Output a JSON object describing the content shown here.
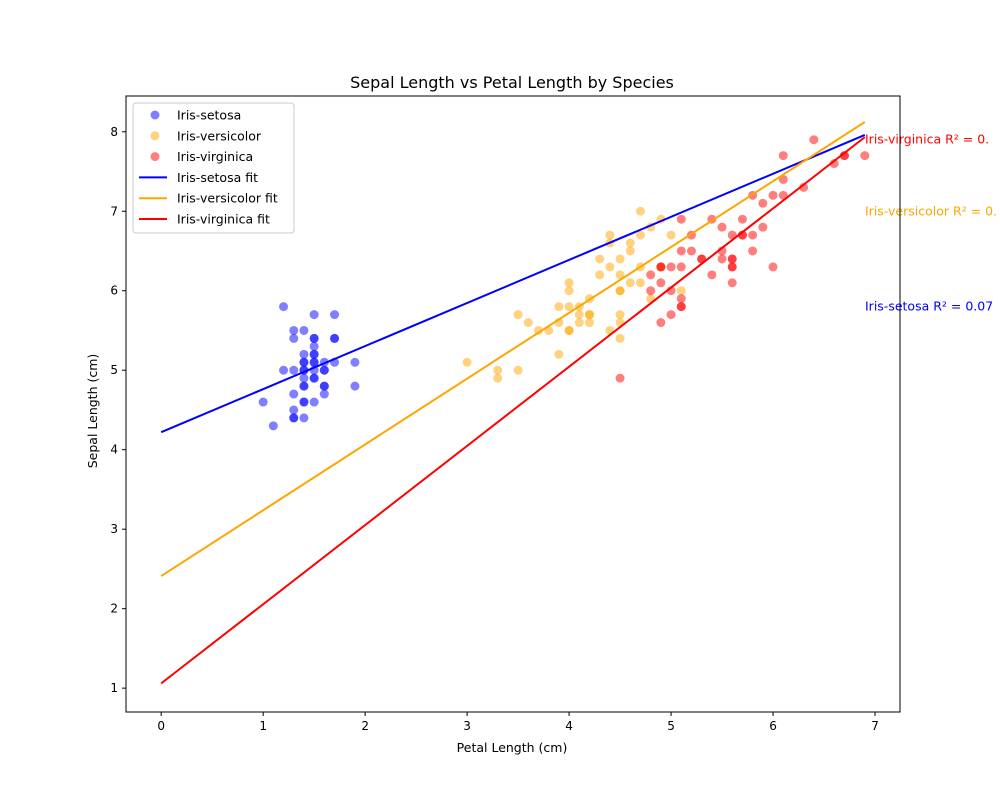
{
  "chart_data": {
    "type": "scatter",
    "title": "Sepal Length vs Petal Length by Species",
    "xlabel": "Petal Length (cm)",
    "ylabel": "Sepal Length (cm)",
    "xlim": [
      -0.345,
      7.245
    ],
    "ylim": [
      0.7,
      8.45
    ],
    "xticks": [
      0,
      1,
      2,
      3,
      4,
      5,
      6,
      7
    ],
    "yticks": [
      1,
      2,
      3,
      4,
      5,
      6,
      7,
      8
    ],
    "grid": false,
    "legend_position": "top-left",
    "legend": [
      "Iris-setosa",
      "Iris-versicolor",
      "Iris-virginica",
      "Iris-setosa fit",
      "Iris-versicolor fit",
      "Iris-virginica fit"
    ],
    "series": [
      {
        "name": "Iris-setosa",
        "color": "#0000ff",
        "fit_label": "Iris-setosa fit",
        "fit": {
          "slope": 0.542,
          "intercept": 4.22
        },
        "annotation": "Iris-setosa R² = 0.07",
        "points": [
          [
            1.0,
            4.6
          ],
          [
            1.1,
            4.3
          ],
          [
            1.2,
            5.8
          ],
          [
            1.2,
            5.0
          ],
          [
            1.3,
            5.5
          ],
          [
            1.3,
            5.4
          ],
          [
            1.3,
            5.0
          ],
          [
            1.3,
            4.7
          ],
          [
            1.3,
            4.5
          ],
          [
            1.3,
            4.4
          ],
          [
            1.3,
            4.4
          ],
          [
            1.4,
            5.5
          ],
          [
            1.4,
            5.2
          ],
          [
            1.4,
            5.1
          ],
          [
            1.4,
            5.1
          ],
          [
            1.4,
            5.0
          ],
          [
            1.4,
            5.0
          ],
          [
            1.4,
            4.9
          ],
          [
            1.4,
            4.8
          ],
          [
            1.4,
            4.8
          ],
          [
            1.4,
            4.6
          ],
          [
            1.4,
            4.6
          ],
          [
            1.4,
            4.4
          ],
          [
            1.5,
            5.7
          ],
          [
            1.5,
            5.4
          ],
          [
            1.5,
            5.4
          ],
          [
            1.5,
            5.3
          ],
          [
            1.5,
            5.2
          ],
          [
            1.5,
            5.2
          ],
          [
            1.5,
            5.1
          ],
          [
            1.5,
            5.1
          ],
          [
            1.5,
            5.0
          ],
          [
            1.5,
            4.9
          ],
          [
            1.5,
            4.9
          ],
          [
            1.5,
            4.6
          ],
          [
            1.6,
            5.1
          ],
          [
            1.6,
            5.0
          ],
          [
            1.6,
            5.0
          ],
          [
            1.6,
            4.8
          ],
          [
            1.6,
            4.8
          ],
          [
            1.6,
            4.7
          ],
          [
            1.7,
            5.7
          ],
          [
            1.7,
            5.4
          ],
          [
            1.7,
            5.4
          ],
          [
            1.7,
            5.1
          ],
          [
            1.9,
            5.1
          ],
          [
            1.9,
            4.8
          ]
        ]
      },
      {
        "name": "Iris-versicolor",
        "color": "#ffa500",
        "fit_label": "Iris-versicolor fit",
        "fit": {
          "slope": 0.828,
          "intercept": 2.41
        },
        "annotation": "Iris-versicolor R² = 0.",
        "points": [
          [
            3.0,
            5.1
          ],
          [
            3.3,
            5.0
          ],
          [
            3.3,
            4.9
          ],
          [
            3.5,
            5.7
          ],
          [
            3.5,
            5.0
          ],
          [
            3.6,
            5.6
          ],
          [
            3.7,
            5.5
          ],
          [
            3.8,
            5.5
          ],
          [
            3.9,
            5.8
          ],
          [
            3.9,
            5.6
          ],
          [
            3.9,
            5.2
          ],
          [
            4.0,
            6.1
          ],
          [
            4.0,
            6.0
          ],
          [
            4.0,
            5.8
          ],
          [
            4.0,
            5.5
          ],
          [
            4.0,
            5.5
          ],
          [
            4.1,
            5.8
          ],
          [
            4.1,
            5.7
          ],
          [
            4.1,
            5.6
          ],
          [
            4.2,
            5.9
          ],
          [
            4.2,
            5.7
          ],
          [
            4.2,
            5.7
          ],
          [
            4.2,
            5.6
          ],
          [
            4.3,
            6.4
          ],
          [
            4.3,
            6.2
          ],
          [
            4.4,
            6.7
          ],
          [
            4.4,
            6.6
          ],
          [
            4.4,
            6.3
          ],
          [
            4.4,
            5.5
          ],
          [
            4.5,
            6.4
          ],
          [
            4.5,
            6.2
          ],
          [
            4.5,
            6.0
          ],
          [
            4.5,
            6.0
          ],
          [
            4.5,
            5.7
          ],
          [
            4.5,
            5.6
          ],
          [
            4.5,
            5.4
          ],
          [
            4.6,
            6.6
          ],
          [
            4.6,
            6.5
          ],
          [
            4.6,
            6.1
          ],
          [
            4.7,
            7.0
          ],
          [
            4.7,
            6.7
          ],
          [
            4.7,
            6.3
          ],
          [
            4.7,
            6.1
          ],
          [
            4.8,
            6.8
          ],
          [
            4.8,
            5.9
          ],
          [
            4.9,
            6.9
          ],
          [
            4.9,
            6.3
          ],
          [
            5.0,
            6.7
          ],
          [
            5.1,
            6.0
          ]
        ]
      },
      {
        "name": "Iris-virginica",
        "color": "#ff0000",
        "fit_label": "Iris-virginica fit",
        "fit": {
          "slope": 0.996,
          "intercept": 1.06
        },
        "annotation": "Iris-virginica R² = 0.",
        "points": [
          [
            4.5,
            4.9
          ],
          [
            4.8,
            6.2
          ],
          [
            4.8,
            6.0
          ],
          [
            4.9,
            6.3
          ],
          [
            4.9,
            6.3
          ],
          [
            4.9,
            6.1
          ],
          [
            4.9,
            5.6
          ],
          [
            5.0,
            6.3
          ],
          [
            5.0,
            6.0
          ],
          [
            5.0,
            5.7
          ],
          [
            5.1,
            6.9
          ],
          [
            5.1,
            6.5
          ],
          [
            5.1,
            6.3
          ],
          [
            5.1,
            5.9
          ],
          [
            5.1,
            5.8
          ],
          [
            5.1,
            5.8
          ],
          [
            5.2,
            6.7
          ],
          [
            5.2,
            6.5
          ],
          [
            5.3,
            6.4
          ],
          [
            5.3,
            6.4
          ],
          [
            5.4,
            6.9
          ],
          [
            5.4,
            6.2
          ],
          [
            5.5,
            6.8
          ],
          [
            5.5,
            6.5
          ],
          [
            5.5,
            6.4
          ],
          [
            5.6,
            6.7
          ],
          [
            5.6,
            6.4
          ],
          [
            5.6,
            6.4
          ],
          [
            5.6,
            6.3
          ],
          [
            5.6,
            6.3
          ],
          [
            5.6,
            6.1
          ],
          [
            5.7,
            6.9
          ],
          [
            5.7,
            6.7
          ],
          [
            5.7,
            6.7
          ],
          [
            5.8,
            7.2
          ],
          [
            5.8,
            6.7
          ],
          [
            5.8,
            6.5
          ],
          [
            5.9,
            7.1
          ],
          [
            5.9,
            6.8
          ],
          [
            6.0,
            7.2
          ],
          [
            6.0,
            6.3
          ],
          [
            6.1,
            7.7
          ],
          [
            6.1,
            7.4
          ],
          [
            6.1,
            7.2
          ],
          [
            6.3,
            7.3
          ],
          [
            6.4,
            7.9
          ],
          [
            6.6,
            7.6
          ],
          [
            6.7,
            7.7
          ],
          [
            6.7,
            7.7
          ],
          [
            6.9,
            7.7
          ]
        ]
      }
    ]
  }
}
